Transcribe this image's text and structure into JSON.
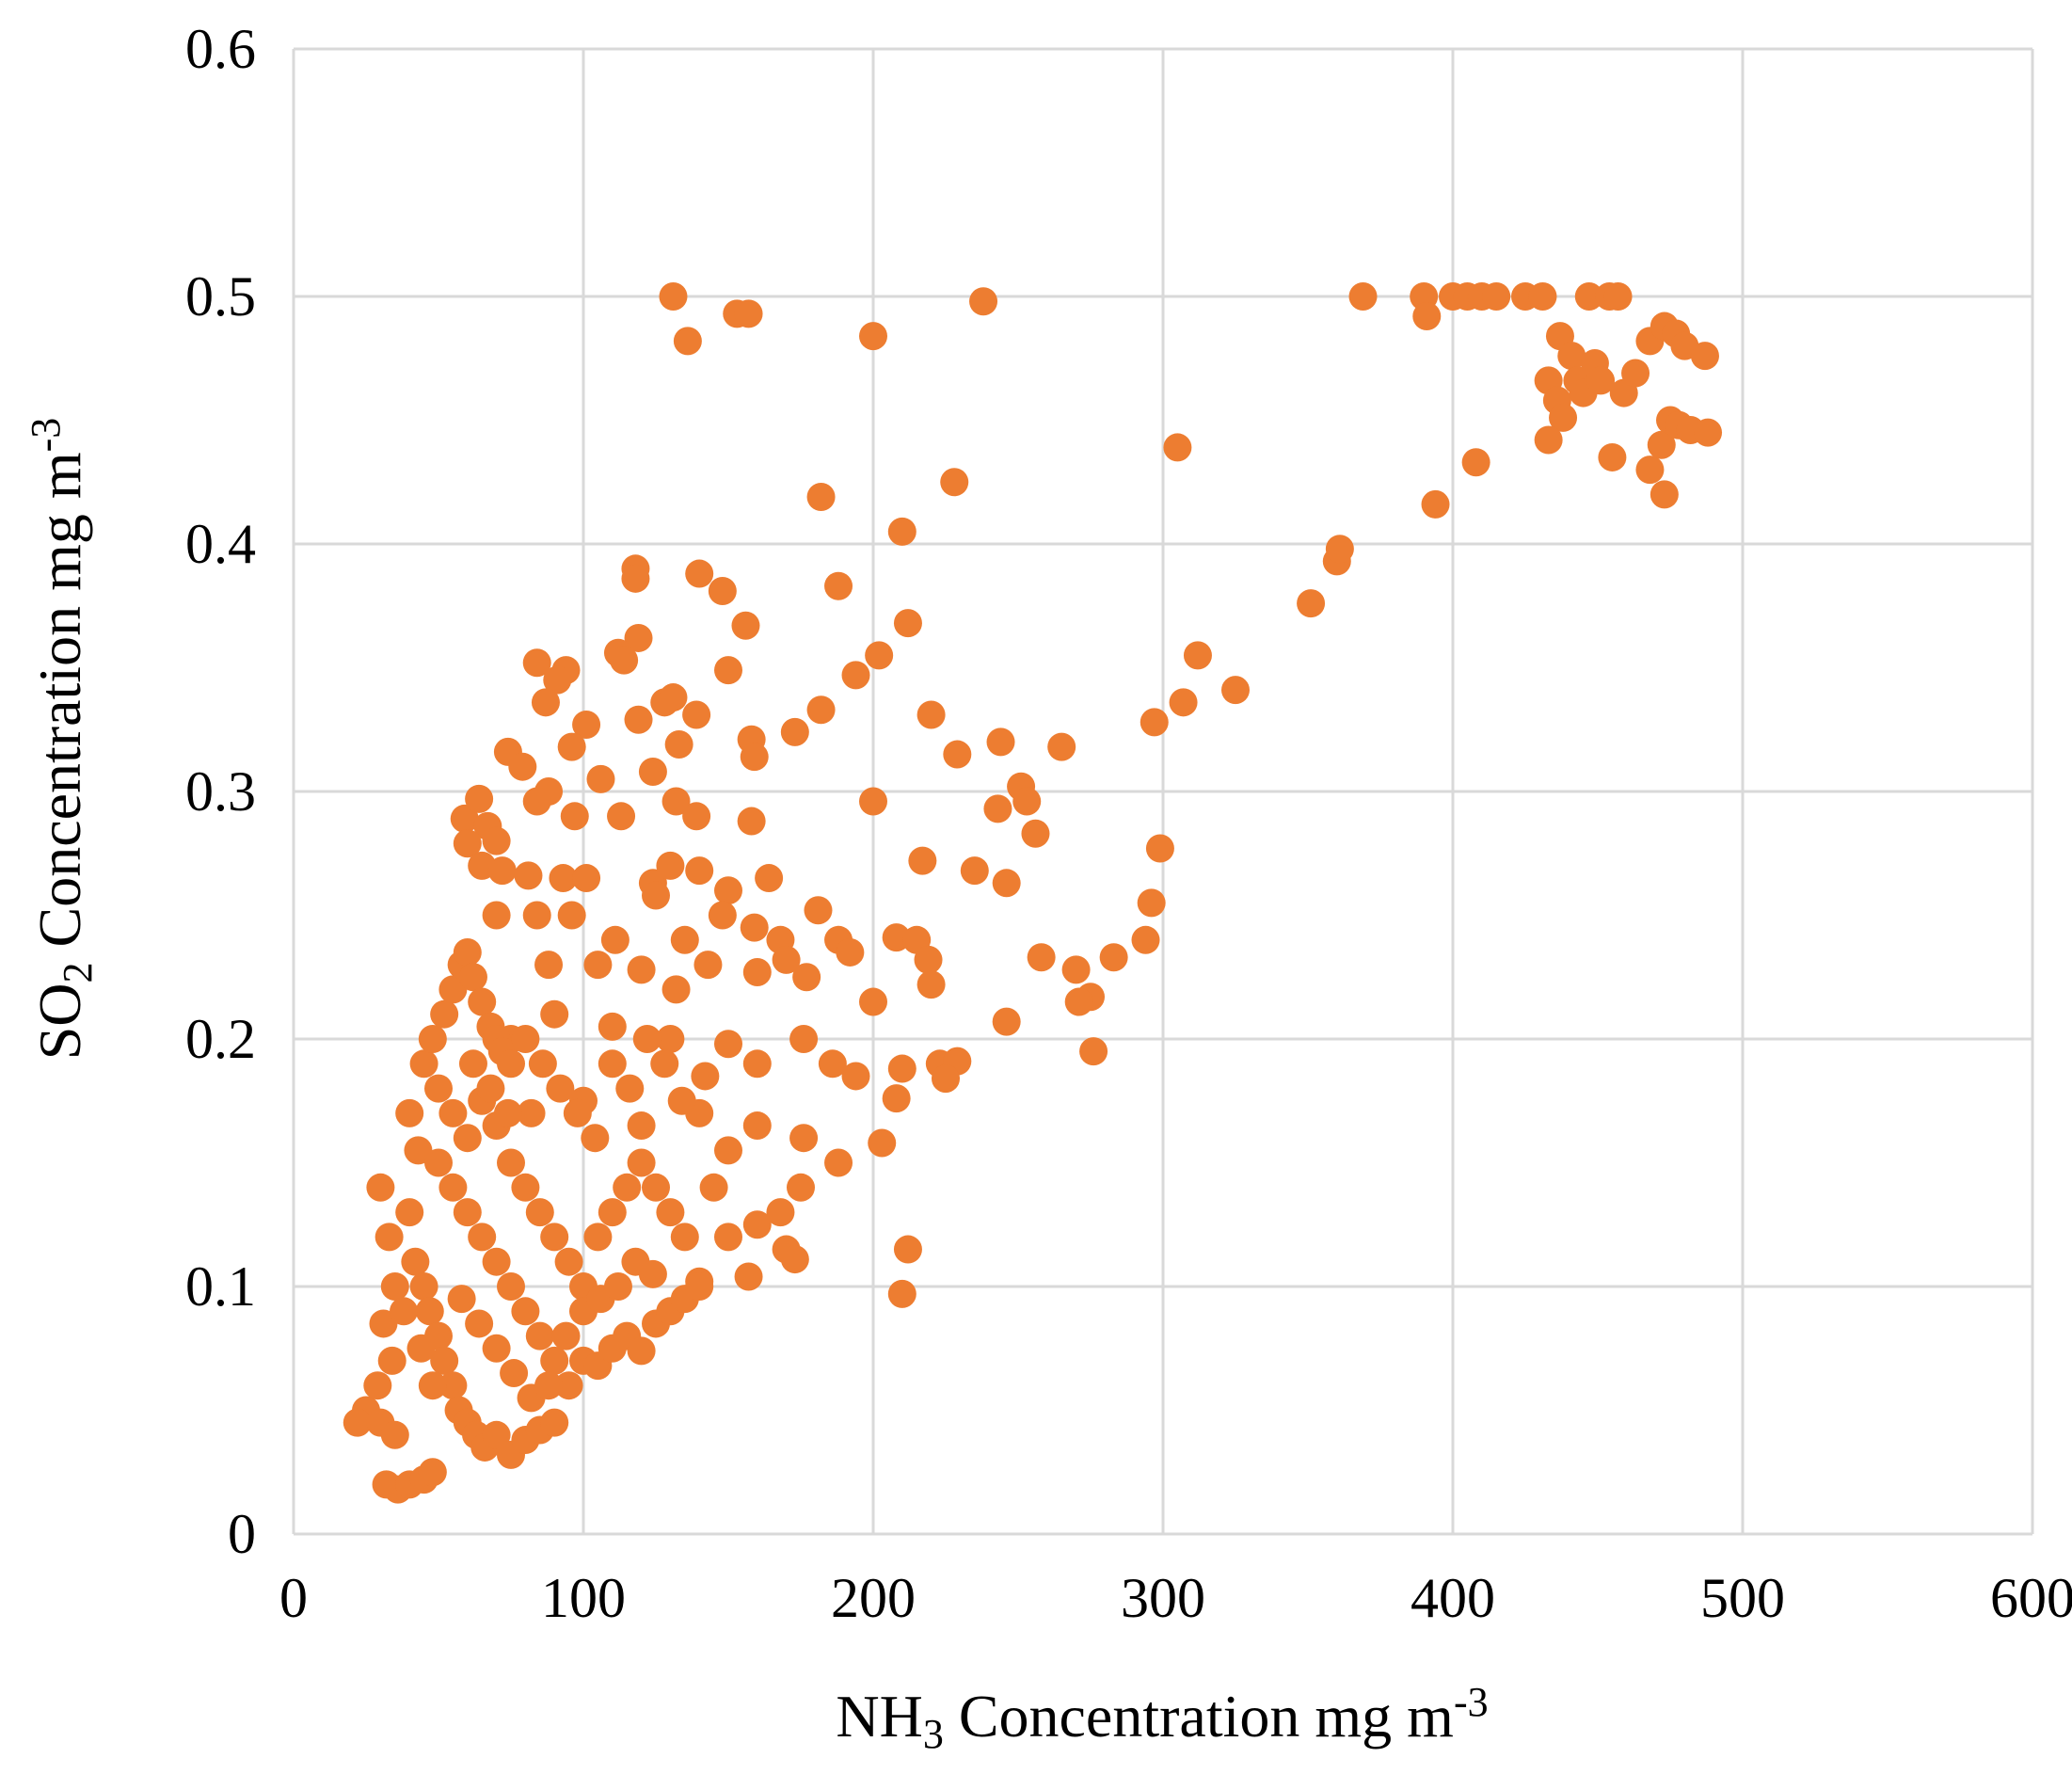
{
  "chart_data": {
    "type": "scatter",
    "title": "",
    "xlabel": {
      "prefix": "NH",
      "sub": "3",
      "middle": " Concentration mg m",
      "sup": "-3"
    },
    "ylabel": {
      "prefix": "SO",
      "sub": "2",
      "middle": " Concentration mg  m",
      "sup": "-3"
    },
    "xlim": [
      0,
      600
    ],
    "ylim": [
      0,
      0.6
    ],
    "xticks": [
      "0",
      "100",
      "200",
      "300",
      "400",
      "500",
      "600"
    ],
    "yticks": [
      "0",
      "0.1",
      "0.2",
      "0.3",
      "0.4",
      "0.5",
      "0.6"
    ],
    "grid": true,
    "legend": "none",
    "marker_color": "#ed7d31",
    "points": [
      [
        131,
        0.5
      ],
      [
        136,
        0.482
      ],
      [
        153,
        0.493
      ],
      [
        157,
        0.493
      ],
      [
        200,
        0.484
      ],
      [
        238,
        0.498
      ],
      [
        369,
        0.5
      ],
      [
        390,
        0.5
      ],
      [
        391,
        0.492
      ],
      [
        400,
        0.5
      ],
      [
        405,
        0.5
      ],
      [
        410,
        0.5
      ],
      [
        415,
        0.5
      ],
      [
        425,
        0.5
      ],
      [
        431,
        0.5
      ],
      [
        447,
        0.5
      ],
      [
        454,
        0.5
      ],
      [
        457,
        0.5
      ],
      [
        437,
        0.484
      ],
      [
        441,
        0.476
      ],
      [
        443,
        0.466
      ],
      [
        433,
        0.466
      ],
      [
        436,
        0.458
      ],
      [
        438,
        0.451
      ],
      [
        445,
        0.461
      ],
      [
        449,
        0.473
      ],
      [
        451,
        0.466
      ],
      [
        459,
        0.461
      ],
      [
        463,
        0.469
      ],
      [
        468,
        0.482
      ],
      [
        473,
        0.488
      ],
      [
        477,
        0.485
      ],
      [
        480,
        0.48
      ],
      [
        487,
        0.476
      ],
      [
        433,
        0.442
      ],
      [
        455,
        0.435
      ],
      [
        468,
        0.43
      ],
      [
        472,
        0.44
      ],
      [
        475,
        0.45
      ],
      [
        478,
        0.448
      ],
      [
        482,
        0.446
      ],
      [
        488,
        0.445
      ],
      [
        473,
        0.42
      ],
      [
        408,
        0.433
      ],
      [
        394,
        0.416
      ],
      [
        305,
        0.439
      ],
      [
        360,
        0.393
      ],
      [
        361,
        0.398
      ],
      [
        351,
        0.376
      ],
      [
        312,
        0.355
      ],
      [
        325,
        0.341
      ],
      [
        307,
        0.336
      ],
      [
        297,
        0.328
      ],
      [
        299,
        0.277
      ],
      [
        296,
        0.255
      ],
      [
        294,
        0.24
      ],
      [
        283,
        0.233
      ],
      [
        275,
        0.217
      ],
      [
        271,
        0.215
      ],
      [
        270,
        0.228
      ],
      [
        276,
        0.195
      ],
      [
        182,
        0.419
      ],
      [
        228,
        0.425
      ],
      [
        210,
        0.405
      ],
      [
        188,
        0.383
      ],
      [
        118,
        0.39
      ],
      [
        118,
        0.386
      ],
      [
        140,
        0.388
      ],
      [
        148,
        0.381
      ],
      [
        156,
        0.367
      ],
      [
        212,
        0.368
      ],
      [
        119,
        0.362
      ],
      [
        112,
        0.356
      ],
      [
        114,
        0.353
      ],
      [
        84,
        0.352
      ],
      [
        94,
        0.349
      ],
      [
        150,
        0.349
      ],
      [
        194,
        0.347
      ],
      [
        202,
        0.355
      ],
      [
        91,
        0.345
      ],
      [
        87,
        0.336
      ],
      [
        128,
        0.336
      ],
      [
        131,
        0.338
      ],
      [
        139,
        0.331
      ],
      [
        101,
        0.327
      ],
      [
        96,
        0.318
      ],
      [
        119,
        0.329
      ],
      [
        133,
        0.319
      ],
      [
        158,
        0.321
      ],
      [
        159,
        0.314
      ],
      [
        173,
        0.324
      ],
      [
        182,
        0.333
      ],
      [
        220,
        0.331
      ],
      [
        244,
        0.32
      ],
      [
        265,
        0.318
      ],
      [
        229,
        0.315
      ],
      [
        74,
        0.316
      ],
      [
        79,
        0.31
      ],
      [
        88,
        0.3
      ],
      [
        84,
        0.296
      ],
      [
        97,
        0.29
      ],
      [
        106,
        0.305
      ],
      [
        113,
        0.29
      ],
      [
        124,
        0.308
      ],
      [
        132,
        0.296
      ],
      [
        139,
        0.29
      ],
      [
        158,
        0.288
      ],
      [
        200,
        0.296
      ],
      [
        251,
        0.302
      ],
      [
        253,
        0.296
      ],
      [
        243,
        0.293
      ],
      [
        256,
        0.283
      ],
      [
        59,
        0.289
      ],
      [
        64,
        0.297
      ],
      [
        67,
        0.286
      ],
      [
        70,
        0.28
      ],
      [
        60,
        0.279
      ],
      [
        65,
        0.27
      ],
      [
        72,
        0.268
      ],
      [
        81,
        0.266
      ],
      [
        93,
        0.265
      ],
      [
        101,
        0.265
      ],
      [
        124,
        0.263
      ],
      [
        130,
        0.27
      ],
      [
        140,
        0.268
      ],
      [
        150,
        0.26
      ],
      [
        164,
        0.265
      ],
      [
        217,
        0.272
      ],
      [
        235,
        0.268
      ],
      [
        246,
        0.263
      ],
      [
        70,
        0.25
      ],
      [
        84,
        0.25
      ],
      [
        96,
        0.25
      ],
      [
        111,
        0.24
      ],
      [
        125,
        0.258
      ],
      [
        135,
        0.24
      ],
      [
        148,
        0.25
      ],
      [
        159,
        0.245
      ],
      [
        168,
        0.24
      ],
      [
        181,
        0.252
      ],
      [
        188,
        0.24
      ],
      [
        192,
        0.235
      ],
      [
        208,
        0.241
      ],
      [
        215,
        0.24
      ],
      [
        219,
        0.232
      ],
      [
        220,
        0.222
      ],
      [
        258,
        0.233
      ],
      [
        88,
        0.23
      ],
      [
        105,
        0.23
      ],
      [
        120,
        0.228
      ],
      [
        132,
        0.22
      ],
      [
        143,
        0.23
      ],
      [
        160,
        0.227
      ],
      [
        170,
        0.232
      ],
      [
        177,
        0.225
      ],
      [
        200,
        0.215
      ],
      [
        246,
        0.207
      ],
      [
        75,
        0.2
      ],
      [
        90,
        0.21
      ],
      [
        110,
        0.205
      ],
      [
        130,
        0.2
      ],
      [
        150,
        0.198
      ],
      [
        160,
        0.19
      ],
      [
        176,
        0.2
      ],
      [
        186,
        0.19
      ],
      [
        194,
        0.185
      ],
      [
        210,
        0.188
      ],
      [
        223,
        0.19
      ],
      [
        229,
        0.191
      ],
      [
        225,
        0.184
      ],
      [
        208,
        0.176
      ],
      [
        203,
        0.158
      ],
      [
        82,
        0.17
      ],
      [
        100,
        0.175
      ],
      [
        120,
        0.165
      ],
      [
        140,
        0.17
      ],
      [
        160,
        0.165
      ],
      [
        176,
        0.16
      ],
      [
        188,
        0.15
      ],
      [
        175,
        0.14
      ],
      [
        168,
        0.13
      ],
      [
        160,
        0.125
      ],
      [
        150,
        0.12
      ],
      [
        170,
        0.115
      ],
      [
        173,
        0.111
      ],
      [
        212,
        0.115
      ],
      [
        210,
        0.097
      ],
      [
        157,
        0.104
      ],
      [
        140,
        0.102
      ],
      [
        30,
        0.14
      ],
      [
        33,
        0.12
      ],
      [
        35,
        0.1
      ],
      [
        31,
        0.085
      ],
      [
        34,
        0.07
      ],
      [
        29,
        0.06
      ],
      [
        25,
        0.05
      ],
      [
        22,
        0.045
      ],
      [
        30,
        0.045
      ],
      [
        35,
        0.04
      ],
      [
        32,
        0.02
      ],
      [
        36,
        0.018
      ],
      [
        40,
        0.02
      ],
      [
        45,
        0.022
      ],
      [
        48,
        0.025
      ],
      [
        40,
        0.17
      ],
      [
        43,
        0.155
      ],
      [
        45,
        0.19
      ],
      [
        48,
        0.2
      ],
      [
        50,
        0.18
      ],
      [
        52,
        0.21
      ],
      [
        55,
        0.22
      ],
      [
        58,
        0.23
      ],
      [
        60,
        0.235
      ],
      [
        62,
        0.225
      ],
      [
        65,
        0.215
      ],
      [
        68,
        0.205
      ],
      [
        70,
        0.2
      ],
      [
        72,
        0.195
      ],
      [
        75,
        0.19
      ],
      [
        40,
        0.13
      ],
      [
        42,
        0.11
      ],
      [
        45,
        0.1
      ],
      [
        47,
        0.09
      ],
      [
        50,
        0.08
      ],
      [
        52,
        0.07
      ],
      [
        55,
        0.06
      ],
      [
        57,
        0.05
      ],
      [
        60,
        0.045
      ],
      [
        63,
        0.04
      ],
      [
        66,
        0.035
      ],
      [
        70,
        0.04
      ],
      [
        75,
        0.032
      ],
      [
        80,
        0.038
      ],
      [
        85,
        0.042
      ],
      [
        90,
        0.045
      ],
      [
        50,
        0.15
      ],
      [
        55,
        0.14
      ],
      [
        60,
        0.13
      ],
      [
        65,
        0.12
      ],
      [
        70,
        0.11
      ],
      [
        75,
        0.1
      ],
      [
        80,
        0.09
      ],
      [
        85,
        0.08
      ],
      [
        90,
        0.07
      ],
      [
        95,
        0.06
      ],
      [
        100,
        0.07
      ],
      [
        105,
        0.068
      ],
      [
        110,
        0.075
      ],
      [
        115,
        0.08
      ],
      [
        120,
        0.074
      ],
      [
        125,
        0.085
      ],
      [
        130,
        0.09
      ],
      [
        135,
        0.095
      ],
      [
        140,
        0.1
      ],
      [
        55,
        0.17
      ],
      [
        60,
        0.16
      ],
      [
        65,
        0.175
      ],
      [
        70,
        0.165
      ],
      [
        75,
        0.15
      ],
      [
        80,
        0.14
      ],
      [
        85,
        0.13
      ],
      [
        90,
        0.12
      ],
      [
        95,
        0.11
      ],
      [
        100,
        0.1
      ],
      [
        105,
        0.12
      ],
      [
        110,
        0.13
      ],
      [
        115,
        0.14
      ],
      [
        120,
        0.15
      ],
      [
        125,
        0.14
      ],
      [
        130,
        0.13
      ],
      [
        135,
        0.12
      ],
      [
        145,
        0.14
      ],
      [
        150,
        0.155
      ],
      [
        62,
        0.19
      ],
      [
        68,
        0.18
      ],
      [
        74,
        0.17
      ],
      [
        80,
        0.2
      ],
      [
        86,
        0.19
      ],
      [
        92,
        0.18
      ],
      [
        98,
        0.17
      ],
      [
        104,
        0.16
      ],
      [
        110,
        0.19
      ],
      [
        116,
        0.18
      ],
      [
        122,
        0.2
      ],
      [
        128,
        0.19
      ],
      [
        134,
        0.175
      ],
      [
        142,
        0.185
      ],
      [
        58,
        0.095
      ],
      [
        64,
        0.085
      ],
      [
        70,
        0.075
      ],
      [
        76,
        0.065
      ],
      [
        82,
        0.055
      ],
      [
        88,
        0.06
      ],
      [
        94,
        0.08
      ],
      [
        100,
        0.09
      ],
      [
        106,
        0.095
      ],
      [
        112,
        0.1
      ],
      [
        118,
        0.11
      ],
      [
        124,
        0.105
      ],
      [
        48,
        0.06
      ],
      [
        44,
        0.075
      ],
      [
        38,
        0.09
      ]
    ]
  }
}
